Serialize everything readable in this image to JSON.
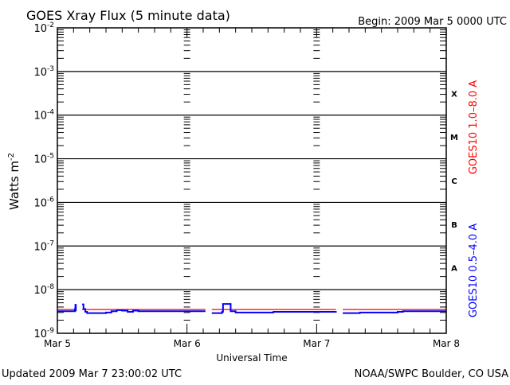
{
  "chart_data": {
    "type": "line",
    "title": "GOES Xray Flux (5 minute data)",
    "begin_label": "Begin:  2009 Mar 5 0000 UTC",
    "xlabel": "Universal Time",
    "ylabel": "Watts m",
    "ylabel_sup": "-2",
    "x_range": [
      "2009-03-05T00:00",
      "2009-03-08T00:00"
    ],
    "x_ticks": [
      {
        "t": "2009-03-05T00:00",
        "label": "Mar 5"
      },
      {
        "t": "2009-03-06T00:00",
        "label": "Mar 6"
      },
      {
        "t": "2009-03-07T00:00",
        "label": "Mar 7"
      },
      {
        "t": "2009-03-08T00:00",
        "label": "Mar 8"
      }
    ],
    "y_scale": "log",
    "ylim": [
      1e-09,
      0.01
    ],
    "y_ticks": [
      {
        "base": "10",
        "exp": "-9"
      },
      {
        "base": "10",
        "exp": "-8"
      },
      {
        "base": "10",
        "exp": "-7"
      },
      {
        "base": "10",
        "exp": "-6"
      },
      {
        "base": "10",
        "exp": "-5"
      },
      {
        "base": "10",
        "exp": "-4"
      },
      {
        "base": "10",
        "exp": "-3"
      },
      {
        "base": "10",
        "exp": "-2"
      }
    ],
    "flare_classes": [
      {
        "label": "A",
        "low": 1e-08,
        "high": 1e-07
      },
      {
        "label": "B",
        "low": 1e-07,
        "high": 1e-06
      },
      {
        "label": "C",
        "low": 1e-06,
        "high": 1e-05
      },
      {
        "label": "M",
        "low": 1e-05,
        "high": 0.0001
      },
      {
        "label": "X",
        "low": 0.0001,
        "high": 0.001
      }
    ],
    "grid": "horizontal lines at decades 1e-8 to 1e-3",
    "series": [
      {
        "name": "GOES10 1.0–8.0 A",
        "color": "#ff0000",
        "segments": [
          [
            [
              "2009-03-05T00:05",
              3.5e-09
            ],
            [
              "2009-03-05T03:25",
              3.5e-09
            ]
          ],
          [
            [
              "2009-03-05T04:35",
              3.5e-09
            ],
            [
              "2009-03-06T03:25",
              3.5e-09
            ]
          ],
          [
            [
              "2009-03-06T04:35",
              3.5e-09
            ],
            [
              "2009-03-07T03:35",
              3.5e-09
            ]
          ],
          [
            [
              "2009-03-07T04:50",
              3.5e-09
            ],
            [
              "2009-03-07T23:55",
              3.5e-09
            ]
          ]
        ]
      },
      {
        "name": "GOES10 0.5–4.0 A",
        "color": "#0000ff",
        "segments": [
          [
            [
              "2009-03-05T00:05",
              3.2e-09
            ],
            [
              "2009-03-05T03:10",
              3.2e-09
            ],
            [
              "2009-03-05T03:15",
              3.6e-09
            ],
            [
              "2009-03-05T03:20",
              4.5e-09
            ],
            [
              "2009-03-05T03:25",
              3.2e-09
            ]
          ],
          [
            [
              "2009-03-05T04:35",
              4.6e-09
            ],
            [
              "2009-03-05T04:50",
              3.6e-09
            ],
            [
              "2009-03-05T05:10",
              3.1e-09
            ],
            [
              "2009-03-05T05:30",
              2.9e-09
            ],
            [
              "2009-03-05T07:30",
              2.9e-09
            ],
            [
              "2009-03-05T09:00",
              3e-09
            ],
            [
              "2009-03-05T10:00",
              3.2e-09
            ],
            [
              "2009-03-05T11:00",
              3.4e-09
            ],
            [
              "2009-03-05T12:00",
              3.3e-09
            ],
            [
              "2009-03-05T13:00",
              3.1e-09
            ],
            [
              "2009-03-05T14:00",
              3.3e-09
            ],
            [
              "2009-03-05T15:00",
              3.2e-09
            ],
            [
              "2009-03-05T17:00",
              3.2e-09
            ],
            [
              "2009-03-06T03:25",
              3.2e-09
            ]
          ],
          [
            [
              "2009-03-06T04:35",
              2.9e-09
            ],
            [
              "2009-03-06T06:00",
              2.9e-09
            ],
            [
              "2009-03-06T06:30",
              3.1e-09
            ],
            [
              "2009-03-06T06:40",
              4.7e-09
            ],
            [
              "2009-03-06T07:50",
              4.7e-09
            ],
            [
              "2009-03-06T08:05",
              3.2e-09
            ],
            [
              "2009-03-06T09:00",
              3e-09
            ],
            [
              "2009-03-06T14:00",
              3e-09
            ],
            [
              "2009-03-06T16:00",
              3.1e-09
            ],
            [
              "2009-03-07T03:35",
              3.2e-09
            ]
          ],
          [
            [
              "2009-03-07T04:50",
              2.9e-09
            ],
            [
              "2009-03-07T07:30",
              2.9e-09
            ],
            [
              "2009-03-07T08:00",
              3e-09
            ],
            [
              "2009-03-07T15:00",
              3.1e-09
            ],
            [
              "2009-03-07T16:00",
              3.2e-09
            ],
            [
              "2009-03-07T23:55",
              3.2e-09
            ]
          ]
        ]
      }
    ]
  },
  "footer": {
    "updated": "Updated 2009 Mar  7 23:00:02 UTC",
    "source": "NOAA/SWPC Boulder, CO USA"
  }
}
